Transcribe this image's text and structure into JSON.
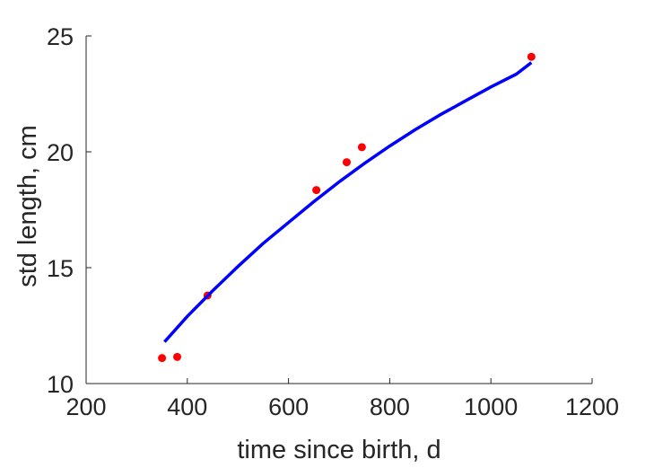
{
  "chart_data": {
    "type": "scatter",
    "title": "",
    "xlabel": "time since birth, d",
    "ylabel": "std length, cm",
    "xlim": [
      200,
      1200
    ],
    "ylim": [
      10,
      25
    ],
    "xticks": [
      200,
      400,
      600,
      800,
      1000,
      1200
    ],
    "yticks": [
      10,
      15,
      20,
      25
    ],
    "grid": false,
    "series": [
      {
        "kind": "points",
        "color": "#ff0000",
        "x": [
          350,
          380,
          440,
          655,
          715,
          745,
          1080
        ],
        "y": [
          11.1,
          11.15,
          13.8,
          18.35,
          19.55,
          20.2,
          24.1
        ]
      },
      {
        "kind": "fit-line",
        "color": "#0000ff",
        "x": [
          355,
          400,
          450,
          500,
          550,
          600,
          650,
          700,
          750,
          800,
          850,
          900,
          950,
          1000,
          1050,
          1080
        ],
        "y": [
          11.8,
          12.9,
          14.0,
          15.05,
          16.05,
          16.95,
          17.85,
          18.7,
          19.5,
          20.25,
          20.95,
          21.6,
          22.2,
          22.8,
          23.35,
          23.85
        ]
      }
    ]
  }
}
